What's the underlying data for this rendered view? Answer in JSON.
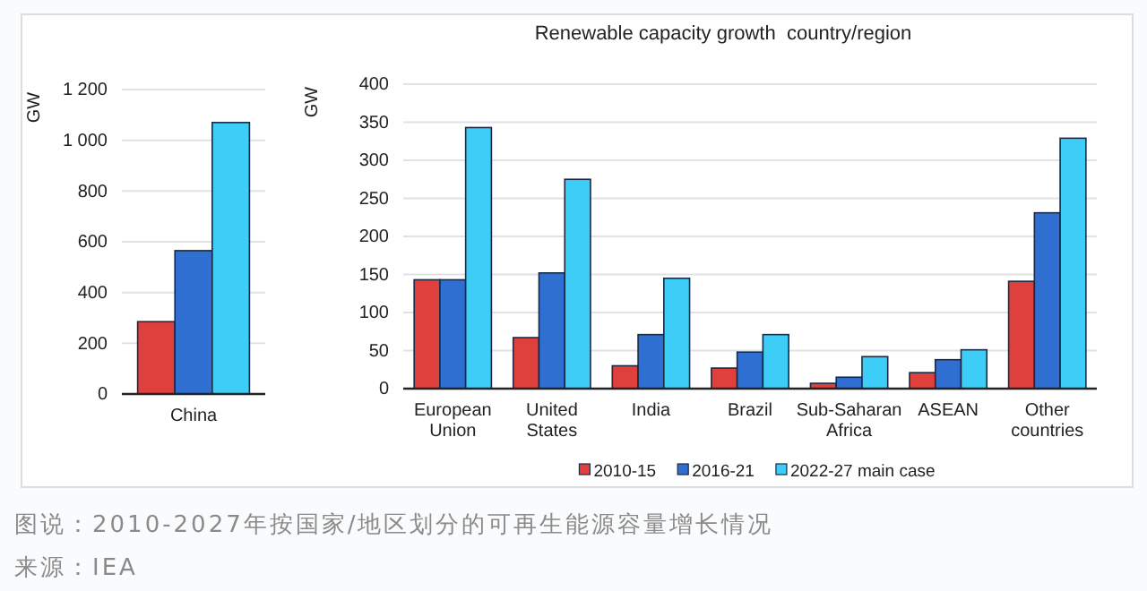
{
  "chart_data": [
    {
      "type": "bar",
      "ylabel": "GW",
      "categories": [
        "China"
      ],
      "ylim": [
        0,
        1200
      ],
      "yticks": [
        0,
        200,
        400,
        600,
        800,
        {
          "value": 1000,
          "label": "1 000"
        },
        {
          "value": 1200,
          "label": "1 200"
        }
      ],
      "grid": "y",
      "series": [
        {
          "color": "#e0403c",
          "values": [
            285
          ]
        },
        {
          "color": "#2f6fd2",
          "values": [
            565
          ]
        },
        {
          "color": "#3dcdf7",
          "values": [
            1070
          ]
        }
      ]
    },
    {
      "type": "bar",
      "title": "Renewable capacity growth  country/region",
      "ylabel": "GW",
      "categories": [
        "European Union",
        "United States",
        "India",
        "Brazil",
        "Sub-Saharan Africa",
        "ASEAN",
        "Other countries"
      ],
      "ylim": [
        0,
        400
      ],
      "yticks": [
        0,
        50,
        100,
        150,
        200,
        250,
        300,
        350,
        400
      ],
      "grid": "y",
      "legend": "bottom",
      "series": [
        {
          "name": "2010-15",
          "color": "#e0403c",
          "values": [
            143,
            67,
            30,
            27,
            7,
            21,
            141
          ]
        },
        {
          "name": "2016-21",
          "color": "#2f6fd2",
          "values": [
            143,
            152,
            71,
            48,
            15,
            38,
            231
          ]
        },
        {
          "name": "2022-27 main case",
          "color": "#3dcdf7",
          "values": [
            343,
            275,
            145,
            71,
            42,
            51,
            329
          ]
        }
      ],
      "annotations": [
        "图说：2010-2027年按国家/地区划分的可再生能源容量增长情况",
        "来源：IEA"
      ]
    }
  ]
}
